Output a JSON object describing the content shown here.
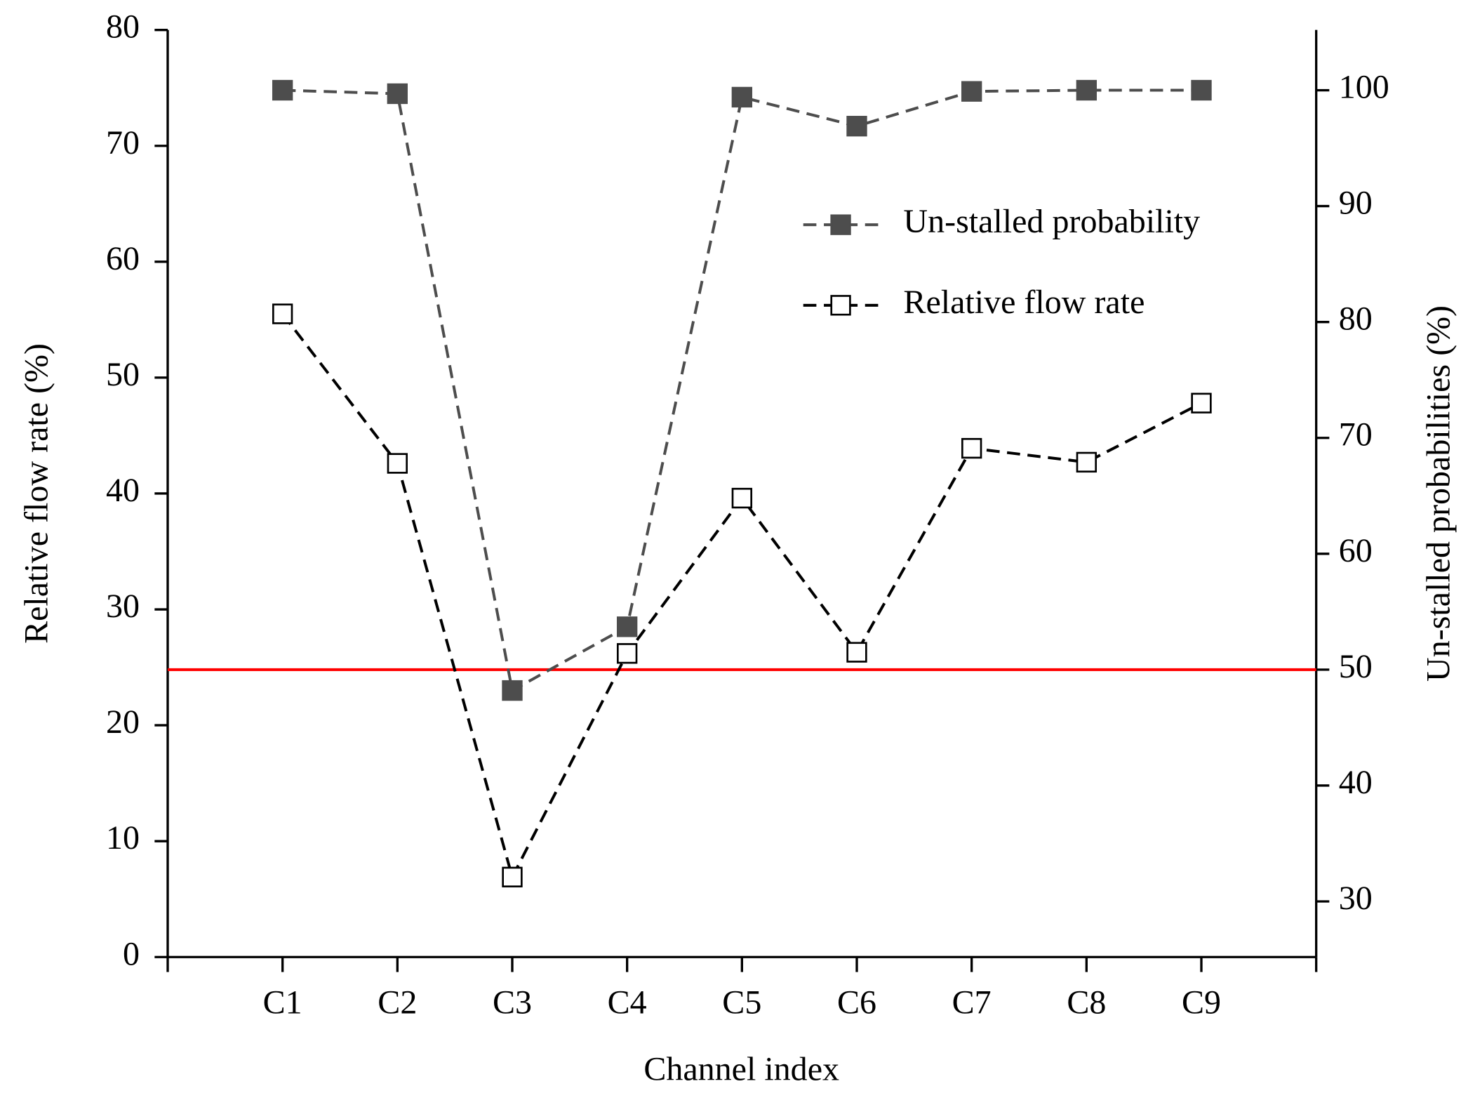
{
  "chart_data": {
    "type": "line",
    "x_label": "Channel index",
    "y_label": "Relative flow rate (%)",
    "y2_label": "Un-stalled probabilities (%)",
    "categories": [
      "C1",
      "C2",
      "C3",
      "C4",
      "C5",
      "C6",
      "C7",
      "C8",
      "C9"
    ],
    "series": [
      {
        "name": "Un-stalled probability",
        "color": "#4d4d4d",
        "marker_fill": true,
        "axis": "y2",
        "values": [
          100,
          99.7,
          48.2,
          53.7,
          99.4,
          96.9,
          99.9,
          100,
          100
        ]
      },
      {
        "name": "Relative flow rate",
        "color": "#000000",
        "marker_fill": false,
        "values": [
          55.5,
          42.6,
          6.9,
          26.2,
          39.6,
          26.3,
          43.9,
          42.7,
          47.8
        ]
      }
    ],
    "ylim": [
      0,
      80
    ],
    "yticks": [
      0,
      10,
      20,
      30,
      40,
      50,
      60,
      70,
      80
    ],
    "y2lim": [
      25.2,
      105.2
    ],
    "y2ticks": [
      30,
      40,
      50,
      60,
      70,
      80,
      90,
      100
    ],
    "reference_line": {
      "value": 50,
      "axis": "y2",
      "color": "#ff0000"
    },
    "grid": false,
    "legend": "upper right"
  }
}
